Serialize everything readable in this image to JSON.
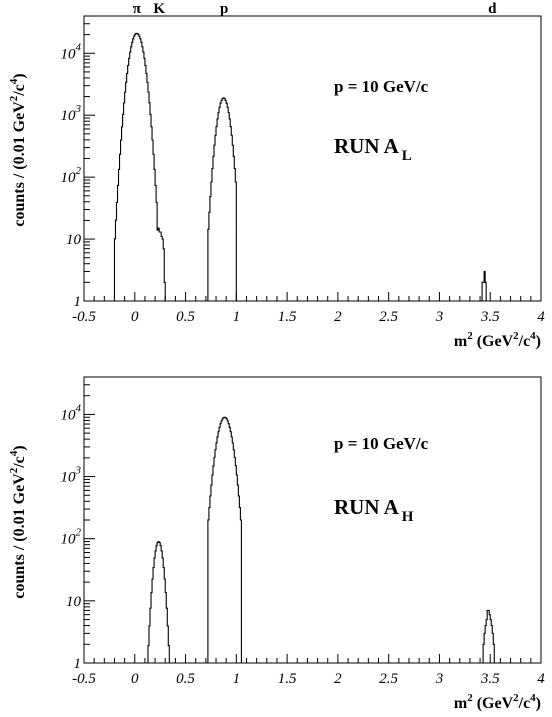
{
  "chart_data": [
    {
      "type": "histogram",
      "xlabel_base": "m",
      "xlabel_sup": "2",
      "xlabel_unit_open": "(GeV",
      "xlabel_unit_sup1": "2",
      "xlabel_unit_mid": "/c",
      "xlabel_unit_sup2": "4",
      "xlabel_unit_close": ")",
      "ylabel_pre": "counts / (0.01 GeV",
      "ylabel_sup1": "2",
      "ylabel_mid": "/c",
      "ylabel_sup2": "4",
      "ylabel_post": ")",
      "xlim": [
        -0.5,
        4.0
      ],
      "ylim": [
        1,
        40000
      ],
      "yscale": "log",
      "x_ticks": [
        "-0.5",
        "0",
        "0.5",
        "1",
        "1.5",
        "2",
        "2.5",
        "3",
        "3.5",
        "4"
      ],
      "y_ticks": [
        {
          "base": "1",
          "exp": ""
        },
        {
          "base": "10",
          "exp": ""
        },
        {
          "base": "10",
          "exp": "2"
        },
        {
          "base": "10",
          "exp": "3"
        },
        {
          "base": "10",
          "exp": "4"
        }
      ],
      "particle_labels": [
        {
          "text": "π",
          "x": 0.02
        },
        {
          "text": "K",
          "x": 0.24
        },
        {
          "text": "p",
          "x": 0.88
        },
        {
          "text": "d",
          "x": 3.52
        }
      ],
      "momentum_label": "p = 10 GeV/c",
      "run_label": "RUN A",
      "run_sub": "L",
      "peaks": [
        {
          "center": 0.02,
          "sigma": 0.055,
          "height": 21000,
          "lo": -0.2,
          "hi": 0.22
        },
        {
          "center": 0.875,
          "sigma": 0.048,
          "height": 1900,
          "lo": 0.72,
          "hi": 1.0
        }
      ],
      "bins": [
        {
          "x": 0.14,
          "count": 3
        },
        {
          "x": 0.15,
          "count": 6
        },
        {
          "x": 0.16,
          "count": 8
        },
        {
          "x": 0.17,
          "count": 10
        },
        {
          "x": 0.18,
          "count": 6
        },
        {
          "x": 0.19,
          "count": 8
        },
        {
          "x": 0.2,
          "count": 14
        },
        {
          "x": 0.21,
          "count": 16
        },
        {
          "x": 0.22,
          "count": 14
        },
        {
          "x": 0.23,
          "count": 15
        },
        {
          "x": 0.24,
          "count": 13
        },
        {
          "x": 0.25,
          "count": 13
        },
        {
          "x": 0.26,
          "count": 11
        },
        {
          "x": 0.27,
          "count": 10
        },
        {
          "x": 0.28,
          "count": 7
        },
        {
          "x": 0.29,
          "count": 2
        },
        {
          "x": 3.42,
          "count": 2
        },
        {
          "x": 3.43,
          "count": 2
        },
        {
          "x": 3.44,
          "count": 3
        },
        {
          "x": 3.45,
          "count": 2
        }
      ]
    },
    {
      "type": "histogram",
      "xlabel_base": "m",
      "xlabel_sup": "2",
      "xlabel_unit_open": "(GeV",
      "xlabel_unit_sup1": "2",
      "xlabel_unit_mid": "/c",
      "xlabel_unit_sup2": "4",
      "xlabel_unit_close": ")",
      "ylabel_pre": "counts / (0.01 GeV",
      "ylabel_sup1": "2",
      "ylabel_mid": "/c",
      "ylabel_sup2": "4",
      "ylabel_post": ")",
      "xlim": [
        -0.5,
        4.0
      ],
      "ylim": [
        1,
        40000
      ],
      "yscale": "log",
      "x_ticks": [
        "-0.5",
        "0",
        "0.5",
        "1",
        "1.5",
        "2",
        "2.5",
        "3",
        "3.5",
        "4"
      ],
      "y_ticks": [
        {
          "base": "1",
          "exp": ""
        },
        {
          "base": "10",
          "exp": ""
        },
        {
          "base": "10",
          "exp": "2"
        },
        {
          "base": "10",
          "exp": "3"
        },
        {
          "base": "10",
          "exp": "4"
        }
      ],
      "momentum_label": "p = 10 GeV/c",
      "run_label": "RUN A",
      "run_sub": "H",
      "peaks": [
        {
          "center": 0.235,
          "sigma": 0.036,
          "height": 90,
          "lo": 0.12,
          "hi": 0.35
        },
        {
          "center": 0.885,
          "sigma": 0.058,
          "height": 9000,
          "lo": 0.72,
          "hi": 1.05
        }
      ],
      "bins": [
        {
          "x": 1.03,
          "count": 2
        },
        {
          "x": 3.43,
          "count": 2
        },
        {
          "x": 3.44,
          "count": 3
        },
        {
          "x": 3.45,
          "count": 4
        },
        {
          "x": 3.46,
          "count": 5
        },
        {
          "x": 3.47,
          "count": 7
        },
        {
          "x": 3.48,
          "count": 7
        },
        {
          "x": 3.49,
          "count": 6
        },
        {
          "x": 3.5,
          "count": 5
        },
        {
          "x": 3.51,
          "count": 4
        },
        {
          "x": 3.52,
          "count": 3
        },
        {
          "x": 3.53,
          "count": 2
        }
      ]
    }
  ]
}
